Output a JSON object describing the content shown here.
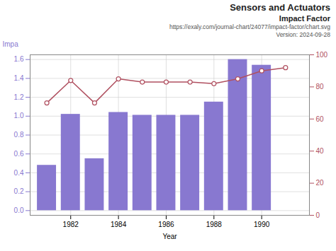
{
  "chart_data": {
    "type": "bar",
    "title": "Sensors and Actuators",
    "subtitle": "Impact Factor",
    "annotations": [
      "https://exaly.com/journal-chart/24077/impact-factor/chart.svg",
      "Version: 2024-09-28"
    ],
    "xlabel": "Year",
    "ylabel": "Impa",
    "x": [
      1981,
      1982,
      1983,
      1984,
      1985,
      1986,
      1987,
      1988,
      1989,
      1990,
      1991
    ],
    "series": [
      {
        "type": "bar",
        "color": "#8878d0",
        "values": [
          0.48,
          1.02,
          0.55,
          1.04,
          1.01,
          1.01,
          1.01,
          1.15,
          1.6,
          1.54,
          0.0
        ]
      },
      {
        "type": "line",
        "color": "#b05060",
        "marker": "circle",
        "axis": "y2",
        "values": [
          70,
          84,
          70,
          85,
          83,
          83,
          83,
          82,
          85,
          90,
          92
        ]
      }
    ],
    "xlim": [
      1980.3,
      1992.0
    ],
    "xticks": [
      1982,
      1984,
      1986,
      1988,
      1990
    ],
    "ylim": [
      -0.05,
      1.65
    ],
    "yticks": [
      {
        "value": 0,
        "label": "0.0"
      },
      0.2,
      0.4,
      0.6,
      0.8,
      {
        "value": 1.0,
        "label": "1.0"
      },
      1.2,
      1.4,
      1.6
    ],
    "y2lim": [
      0,
      100
    ],
    "y2ticks": [
      0,
      20,
      40,
      60,
      80,
      100
    ],
    "grid": true
  }
}
